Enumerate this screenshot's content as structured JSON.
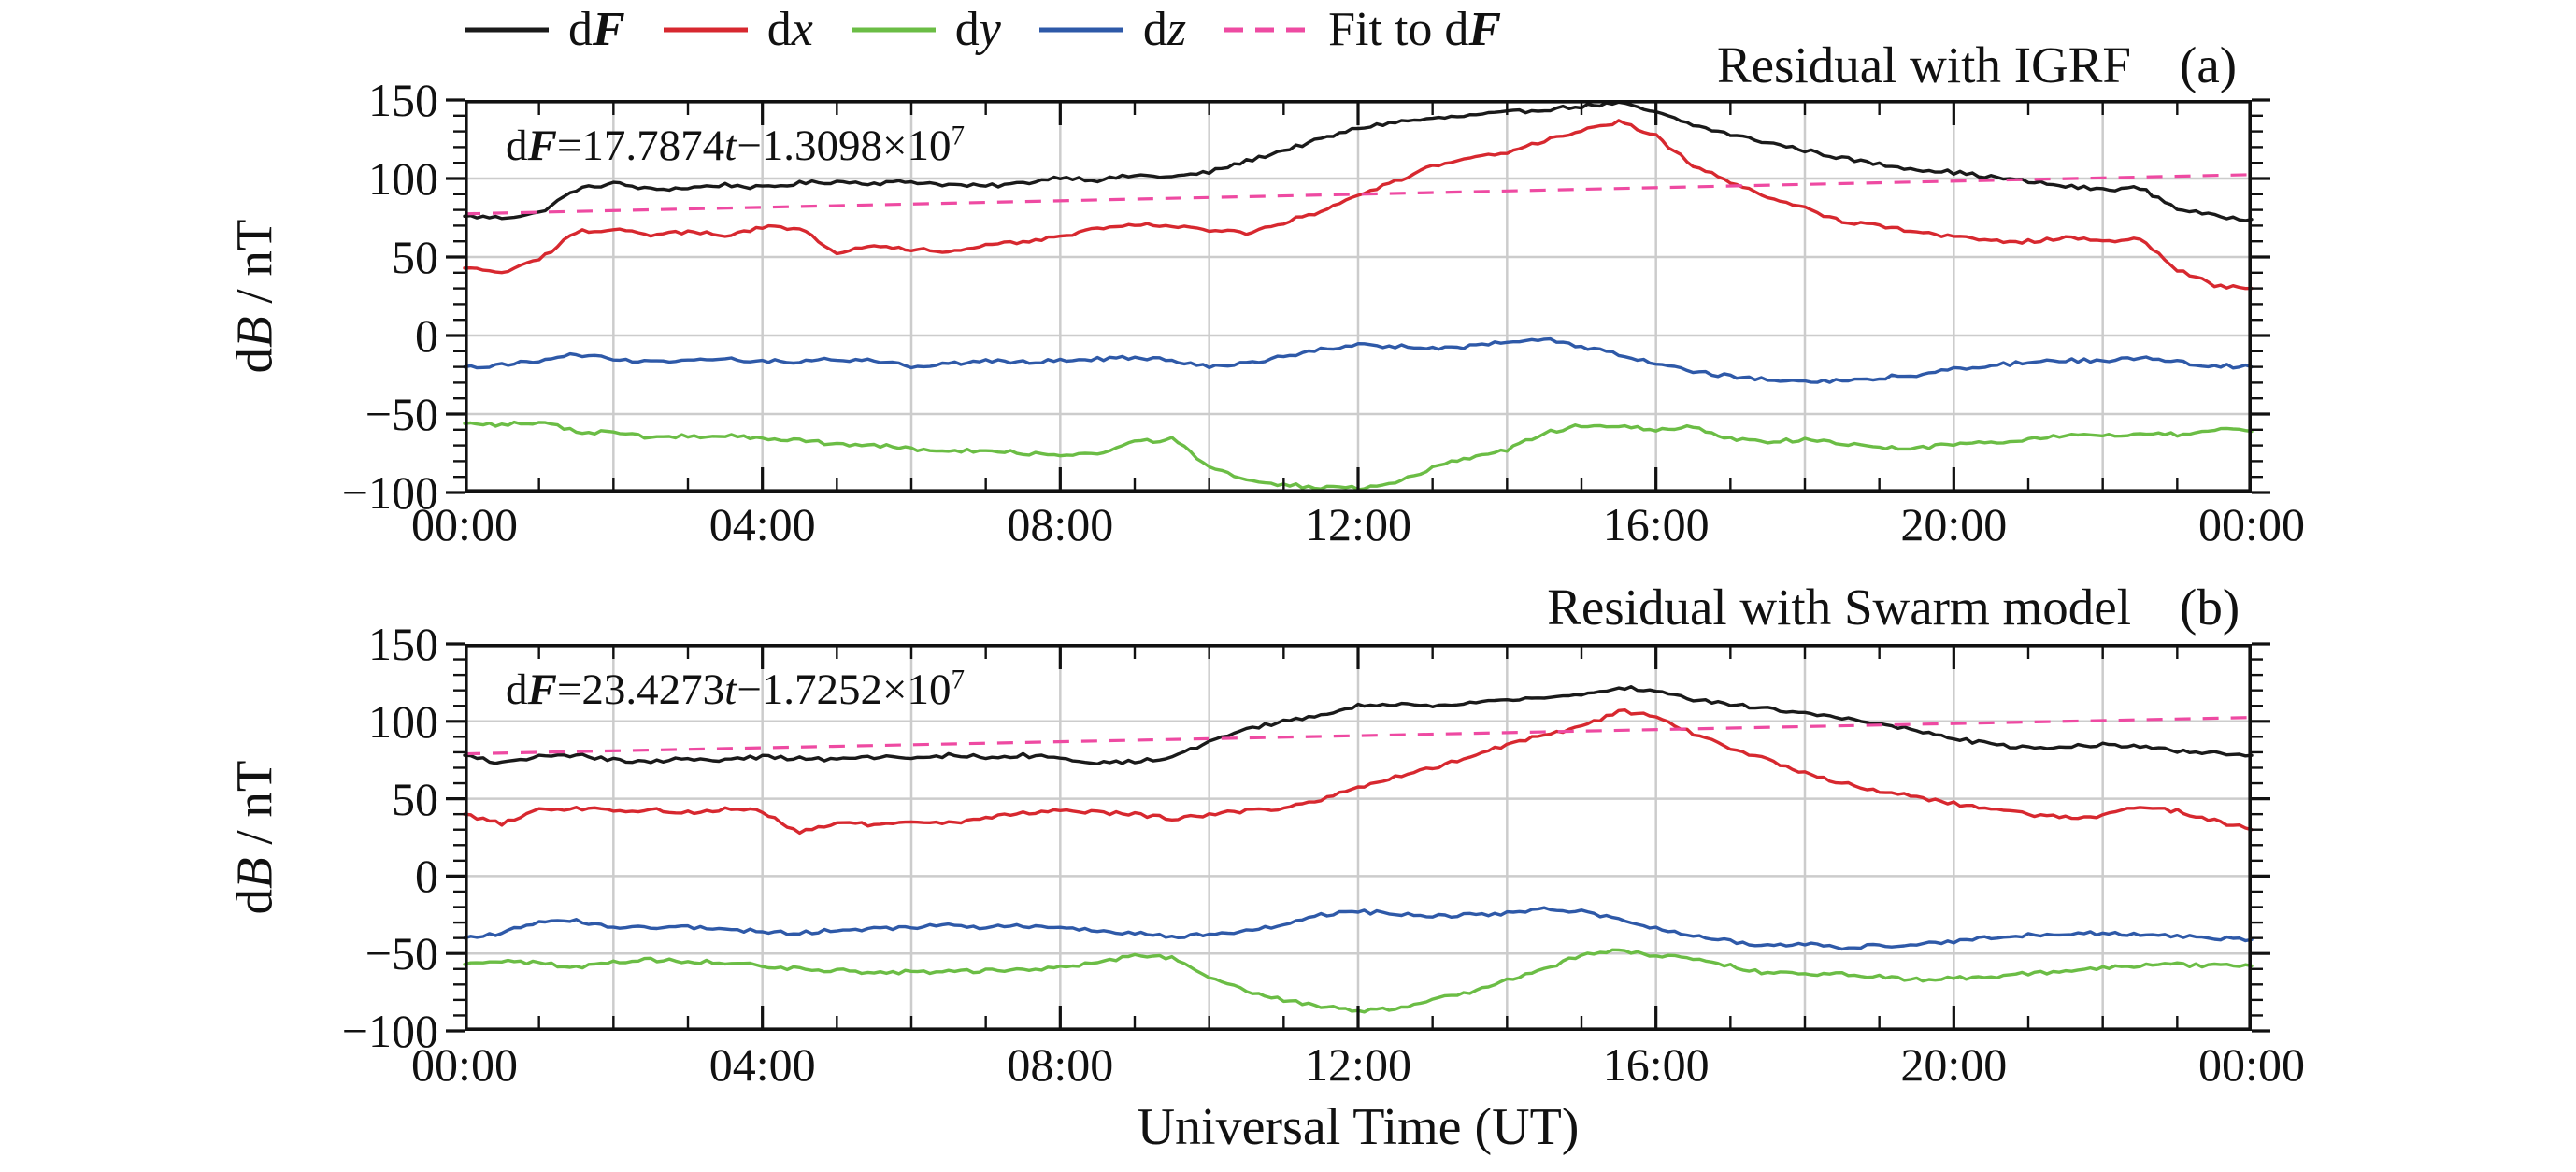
{
  "page": {
    "background": "#ffffff"
  },
  "colors": {
    "dF": "#1a1a1a",
    "dx": "#d7282f",
    "dy": "#6bbd45",
    "dz": "#2e59a8",
    "fit": "#ee4aa2",
    "grid": "#cccccc",
    "axis": "#111111"
  },
  "legend": {
    "items": [
      {
        "id": "dF",
        "prefix": "d",
        "variable": "F",
        "variable_bold": true,
        "color": "#1a1a1a",
        "dashed": false
      },
      {
        "id": "dx",
        "prefix": "d",
        "variable": "x",
        "variable_bold": false,
        "color": "#d7282f",
        "dashed": false
      },
      {
        "id": "dy",
        "prefix": "d",
        "variable": "y",
        "variable_bold": false,
        "color": "#6bbd45",
        "dashed": false
      },
      {
        "id": "dz",
        "prefix": "d",
        "variable": "z",
        "variable_bold": false,
        "color": "#2e59a8",
        "dashed": false
      },
      {
        "id": "fit",
        "prefix": "Fit to d",
        "variable": "F",
        "variable_bold": true,
        "color": "#ee4aa2",
        "dashed": true
      }
    ]
  },
  "axes": {
    "x_label": "Universal Time (UT)",
    "y_label": {
      "d": "d",
      "B": "B",
      "rest": " / nT"
    },
    "x_tick_labels": [
      "00:00",
      "04:00",
      "08:00",
      "12:00",
      "16:00",
      "20:00",
      "00:00"
    ],
    "y_tick_labels": [
      "150",
      "100",
      "50",
      "0",
      "−50",
      "−100"
    ],
    "y_tick_values": [
      150,
      100,
      50,
      0,
      -50,
      -100
    ],
    "x_major_tick_hours": 4,
    "x_minor_tick_hours": 1,
    "grid_x_step_hours": 2,
    "y_minor_tick": 10,
    "grid_y_values": [
      100,
      50,
      0,
      -50
    ]
  },
  "chart_data": [
    {
      "type": "line",
      "id": "a",
      "title": "Residual with IGRF",
      "panel_label": "(a)",
      "annotation": {
        "d": "d",
        "F": "F",
        "eq": "=",
        "slope": "17.7874",
        "t": "t",
        "minus": "−",
        "intercept": "1.3098",
        "times": "×10",
        "exp": "7"
      },
      "xlim": [
        0,
        24
      ],
      "ylim": [
        -100,
        150
      ],
      "x_hours": [
        0,
        0.5,
        1,
        1.5,
        2,
        2.5,
        3,
        3.5,
        4,
        4.5,
        5,
        5.5,
        6,
        6.5,
        7,
        7.5,
        8,
        8.5,
        9,
        9.5,
        10,
        10.5,
        11,
        11.5,
        12,
        12.5,
        13,
        13.5,
        14,
        14.5,
        15,
        15.5,
        16,
        16.5,
        17,
        17.5,
        18,
        18.5,
        19,
        19.5,
        20,
        20.5,
        21,
        21.5,
        22,
        22.5,
        23,
        23.5,
        24
      ],
      "series": [
        {
          "name": "dF",
          "color": "#1a1a1a",
          "values": [
            76,
            75,
            78,
            93,
            97,
            93,
            94,
            96,
            94,
            97,
            98,
            97,
            98,
            96,
            95,
            97,
            101,
            99,
            102,
            101,
            104,
            111,
            118,
            125,
            132,
            136,
            138,
            140,
            142,
            144,
            146,
            148,
            142,
            134,
            128,
            123,
            118,
            113,
            109,
            106,
            104,
            101,
            98,
            95,
            93,
            94,
            81,
            76,
            74
          ]
        },
        {
          "name": "dx",
          "color": "#d7282f",
          "values": [
            43,
            40,
            48,
            66,
            68,
            64,
            66,
            64,
            69,
            68,
            53,
            58,
            55,
            53,
            57,
            60,
            63,
            68,
            71,
            70,
            67,
            65,
            72,
            79,
            90,
            98,
            108,
            113,
            117,
            124,
            130,
            136,
            127,
            108,
            98,
            88,
            81,
            73,
            70,
            66,
            63,
            60,
            60,
            62,
            60,
            62,
            42,
            32,
            30
          ]
        },
        {
          "name": "dy",
          "color": "#6bbd45",
          "values": [
            -56,
            -57,
            -55,
            -61,
            -62,
            -65,
            -64,
            -64,
            -65,
            -67,
            -69,
            -70,
            -72,
            -74,
            -73,
            -75,
            -76,
            -75,
            -68,
            -66,
            -83,
            -92,
            -95,
            -97,
            -97,
            -94,
            -84,
            -78,
            -73,
            -62,
            -57,
            -57,
            -60,
            -58,
            -66,
            -68,
            -66,
            -69,
            -71,
            -72,
            -69,
            -68,
            -66,
            -64,
            -64,
            -62,
            -63,
            -60,
            -61
          ]
        },
        {
          "name": "dz",
          "color": "#2e59a8",
          "values": [
            -20,
            -19,
            -16,
            -12,
            -15,
            -17,
            -16,
            -15,
            -16,
            -17,
            -15,
            -16,
            -20,
            -18,
            -16,
            -17,
            -16,
            -15,
            -14,
            -16,
            -20,
            -18,
            -13,
            -9,
            -6,
            -7,
            -8,
            -7,
            -4,
            -2,
            -7,
            -12,
            -18,
            -23,
            -26,
            -28,
            -29,
            -29,
            -27,
            -25,
            -21,
            -19,
            -17,
            -16,
            -16,
            -14,
            -17,
            -19,
            -20
          ]
        }
      ],
      "fit": {
        "name": "Fit to dF",
        "color": "#ee4aa2",
        "dashed": true,
        "endpoint_values": [
          77.5,
          102.5
        ]
      }
    },
    {
      "type": "line",
      "id": "b",
      "title": "Residual with Swarm model",
      "panel_label": "(b)",
      "annotation": {
        "d": "d",
        "F": "F",
        "eq": "=",
        "slope": "23.4273",
        "t": "t",
        "minus": "−",
        "intercept": "1.7252",
        "times": "×10",
        "exp": "7"
      },
      "xlim": [
        0,
        24
      ],
      "ylim": [
        -100,
        150
      ],
      "x_hours": [
        0,
        0.5,
        1,
        1.5,
        2,
        2.5,
        3,
        3.5,
        4,
        4.5,
        5,
        5.5,
        6,
        6.5,
        7,
        7.5,
        8,
        8.5,
        9,
        9.5,
        10,
        10.5,
        11,
        11.5,
        12,
        12.5,
        13,
        13.5,
        14,
        14.5,
        15,
        15.5,
        16,
        16.5,
        17,
        17.5,
        18,
        18.5,
        19,
        19.5,
        20,
        20.5,
        21,
        21.5,
        22,
        22.5,
        23,
        23.5,
        24
      ],
      "series": [
        {
          "name": "dF",
          "color": "#1a1a1a",
          "values": [
            78,
            73,
            77,
            78,
            75,
            74,
            76,
            75,
            77,
            76,
            75,
            77,
            76,
            78,
            77,
            78,
            76,
            73,
            74,
            77,
            87,
            95,
            100,
            104,
            110,
            111,
            110,
            112,
            114,
            115,
            117,
            122,
            120,
            114,
            111,
            108,
            105,
            102,
            99,
            94,
            89,
            85,
            83,
            84,
            85,
            84,
            81,
            80,
            78
          ]
        },
        {
          "name": "dx",
          "color": "#d7282f",
          "values": [
            40,
            34,
            43,
            44,
            42,
            43,
            41,
            43,
            42,
            28,
            35,
            33,
            36,
            34,
            38,
            41,
            43,
            41,
            40,
            37,
            40,
            42,
            44,
            49,
            57,
            64,
            70,
            77,
            85,
            91,
            96,
            107,
            103,
            92,
            83,
            75,
            67,
            60,
            55,
            51,
            47,
            43,
            40,
            38,
            39,
            45,
            42,
            36,
            30
          ]
        },
        {
          "name": "dy",
          "color": "#6bbd45",
          "values": [
            -57,
            -55,
            -56,
            -59,
            -56,
            -54,
            -55,
            -56,
            -58,
            -60,
            -61,
            -62,
            -62,
            -62,
            -61,
            -60,
            -59,
            -56,
            -51,
            -53,
            -66,
            -74,
            -80,
            -84,
            -87,
            -86,
            -79,
            -75,
            -67,
            -60,
            -51,
            -48,
            -52,
            -53,
            -58,
            -63,
            -63,
            -63,
            -65,
            -67,
            -66,
            -65,
            -63,
            -61,
            -59,
            -58,
            -57,
            -58,
            -58
          ]
        },
        {
          "name": "dz",
          "color": "#2e59a8",
          "values": [
            -40,
            -37,
            -29,
            -29,
            -33,
            -33,
            -33,
            -34,
            -36,
            -37,
            -35,
            -34,
            -33,
            -32,
            -33,
            -32,
            -33,
            -35,
            -37,
            -39,
            -38,
            -35,
            -32,
            -25,
            -23,
            -24,
            -26,
            -25,
            -24,
            -21,
            -23,
            -28,
            -34,
            -38,
            -42,
            -45,
            -44,
            -46,
            -45,
            -44,
            -42,
            -40,
            -38,
            -37,
            -37,
            -38,
            -39,
            -40,
            -41
          ]
        }
      ],
      "fit": {
        "name": "Fit to dF",
        "color": "#ee4aa2",
        "dashed": true,
        "endpoint_values": [
          79,
          102.5
        ]
      }
    }
  ]
}
